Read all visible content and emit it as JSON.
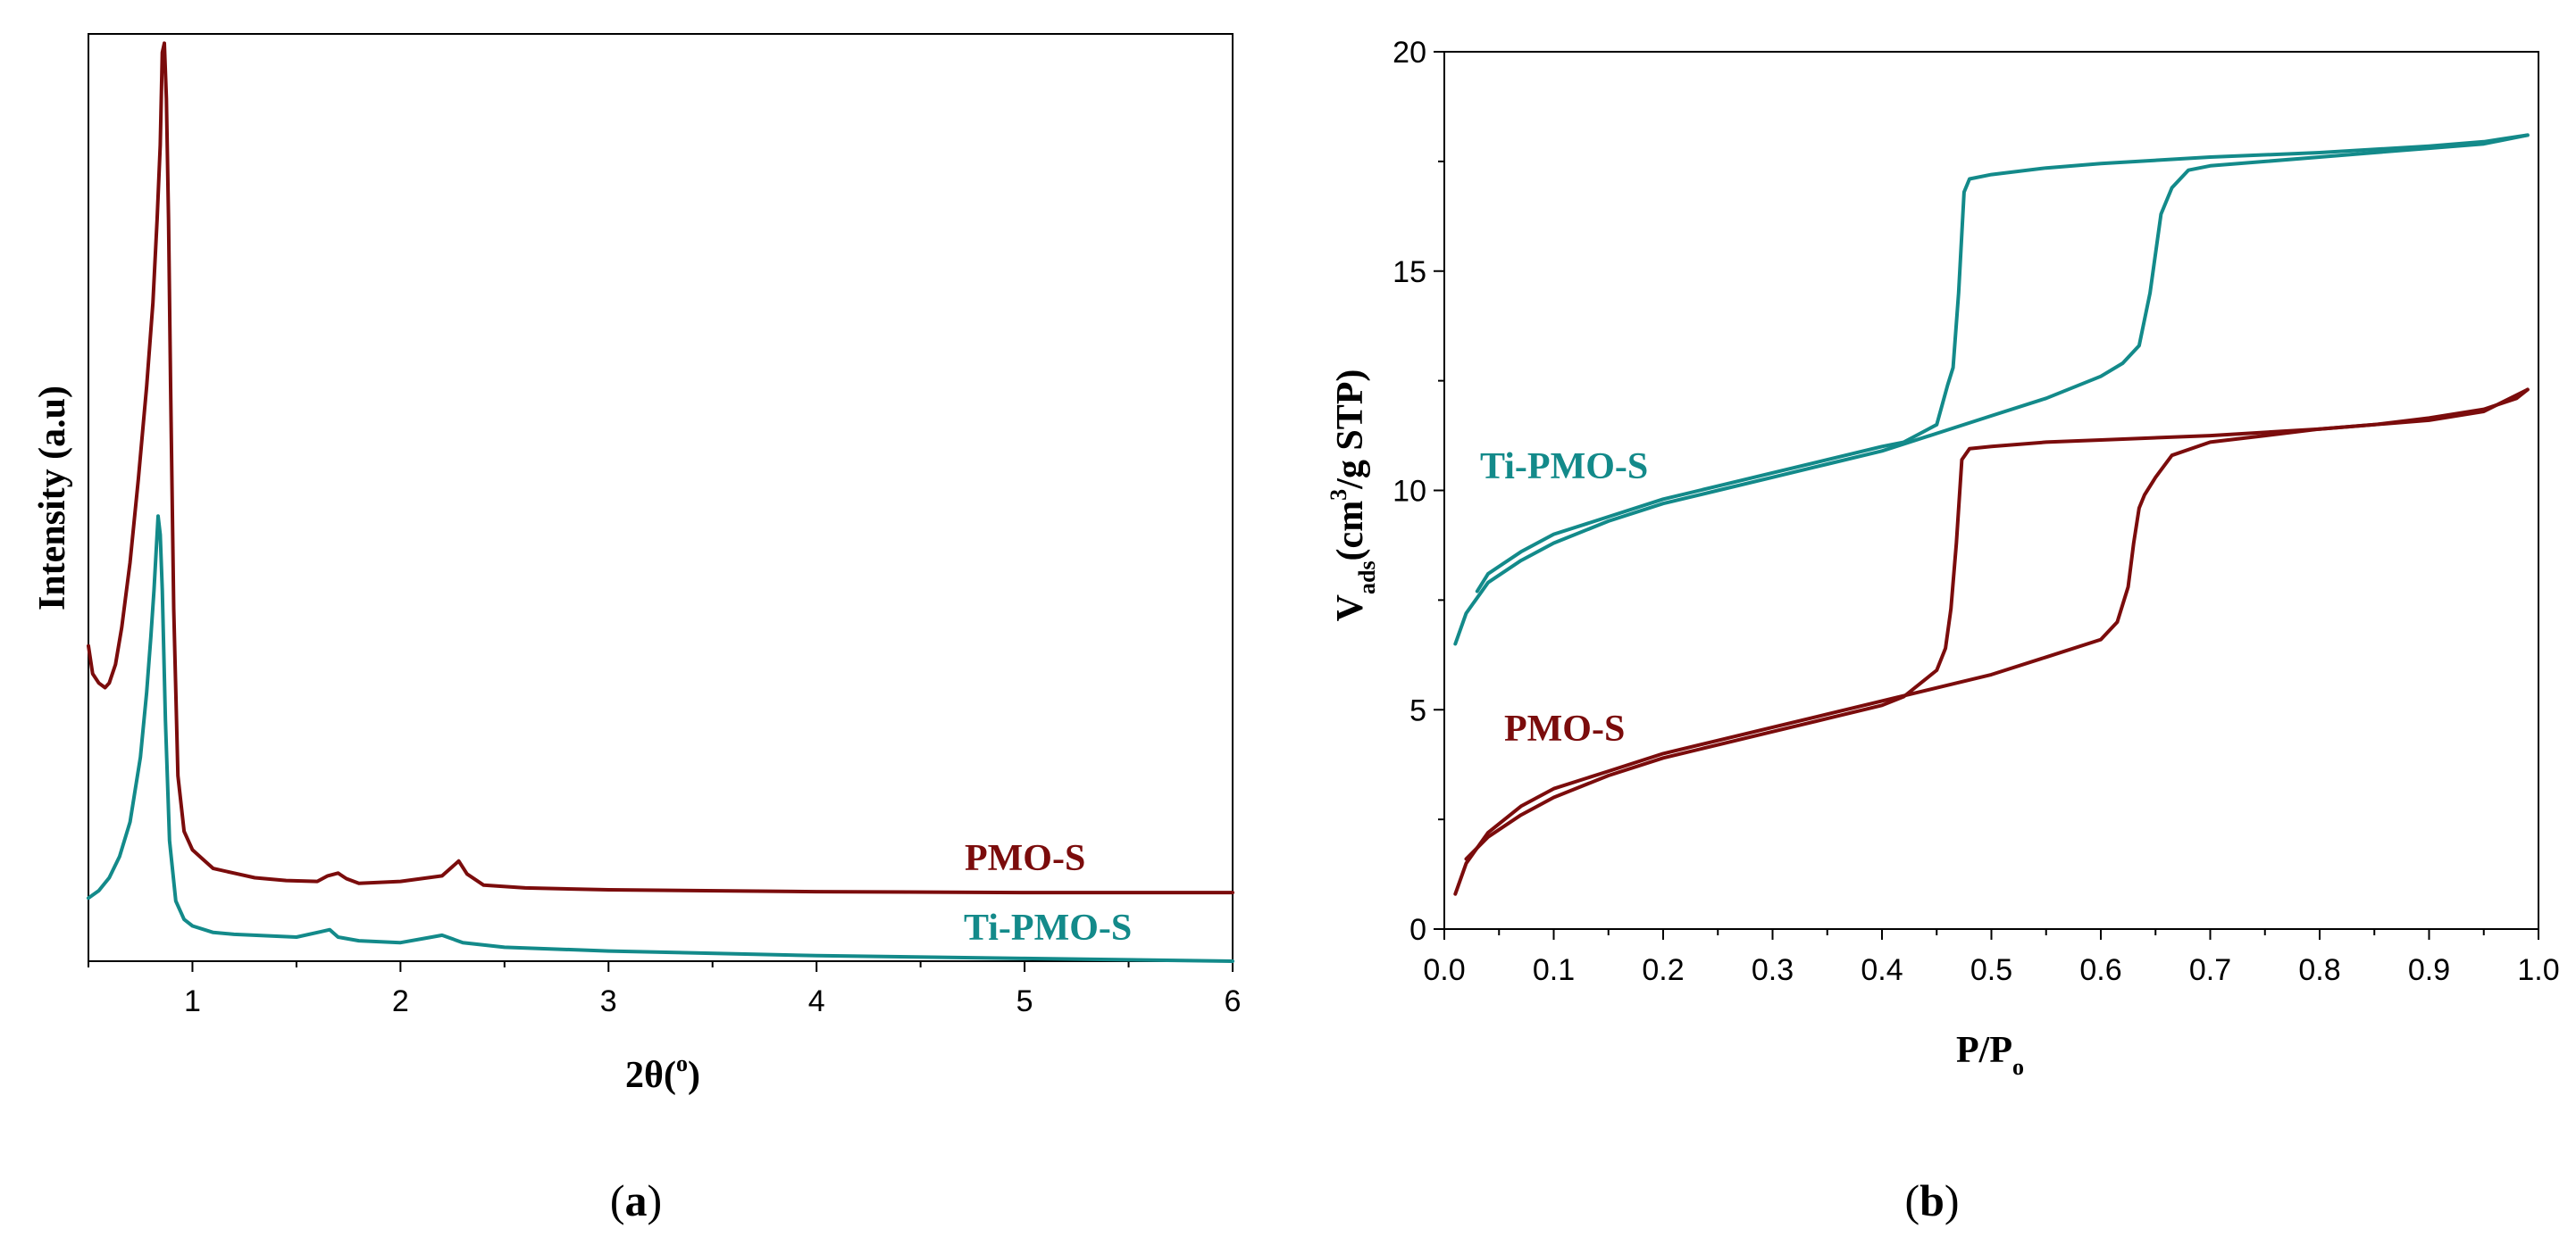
{
  "colors": {
    "pmo": "#7b0c0c",
    "ti": "#138a8a",
    "axis": "#000000"
  },
  "chart_data": [
    {
      "type": "line",
      "panel": "a",
      "panel_label": "a",
      "title": "",
      "xlabel": "2θ(",
      "xlabel_sup": "o",
      "xlabel_end": ")",
      "ylabel": "Intensity (a.u)",
      "xlim": [
        0.5,
        6
      ],
      "ylim": [
        0,
        100
      ],
      "xticks": [
        1,
        2,
        3,
        4,
        5,
        6
      ],
      "xtick_labels": [
        "1",
        "2",
        "3",
        "4",
        "5",
        "6"
      ],
      "series": [
        {
          "name": "PMO-S",
          "label": "PMO-S",
          "x": [
            0.5,
            0.52,
            0.55,
            0.58,
            0.6,
            0.63,
            0.66,
            0.7,
            0.74,
            0.78,
            0.81,
            0.83,
            0.845,
            0.855,
            0.865,
            0.875,
            0.885,
            0.895,
            0.91,
            0.93,
            0.96,
            1.0,
            1.05,
            1.1,
            1.2,
            1.3,
            1.45,
            1.6,
            1.65,
            1.7,
            1.74,
            1.8,
            2.0,
            2.2,
            2.25,
            2.28,
            2.32,
            2.4,
            2.6,
            3.0,
            4.0,
            5.0,
            6.0
          ],
          "y": [
            34,
            31,
            30,
            29.5,
            30,
            32,
            36,
            43,
            52,
            62,
            71,
            80,
            88,
            98,
            99,
            93,
            80,
            62,
            38,
            20,
            14,
            12,
            11,
            10,
            9.5,
            9,
            8.7,
            8.6,
            9.2,
            9.5,
            8.9,
            8.4,
            8.6,
            9.2,
            10.2,
            10.8,
            9.4,
            8.2,
            7.9,
            7.7,
            7.5,
            7.4,
            7.4
          ]
        },
        {
          "name": "Ti-PMO-S",
          "label": "Ti-PMO-S",
          "x": [
            0.5,
            0.55,
            0.6,
            0.65,
            0.7,
            0.75,
            0.78,
            0.8,
            0.815,
            0.825,
            0.835,
            0.845,
            0.855,
            0.87,
            0.89,
            0.92,
            0.96,
            1.0,
            1.1,
            1.2,
            1.5,
            1.62,
            1.66,
            1.7,
            1.8,
            2.0,
            2.15,
            2.2,
            2.3,
            2.5,
            3.0,
            4.0,
            5.0,
            6.0
          ],
          "y": [
            6.8,
            7.6,
            9,
            11.3,
            15,
            22,
            29,
            35,
            40,
            44,
            48,
            46,
            40,
            26,
            13,
            6.5,
            4.5,
            3.8,
            3.1,
            2.9,
            2.6,
            3.2,
            3.4,
            2.6,
            2.2,
            2,
            2.6,
            2.8,
            2,
            1.5,
            1.1,
            0.6,
            0.3,
            0
          ]
        }
      ]
    },
    {
      "type": "line",
      "panel": "b",
      "panel_label": "b",
      "title": "",
      "xlabel": "P/P",
      "xlabel_sub": "o",
      "ylabel_main": "V",
      "ylabel_sub": "ads",
      "ylabel_mid": "(cm",
      "ylabel_sup": "3",
      "ylabel_end": "/g STP)",
      "xlim": [
        0,
        1
      ],
      "ylim": [
        0,
        20
      ],
      "xticks": [
        0.0,
        0.1,
        0.2,
        0.3,
        0.4,
        0.5,
        0.6,
        0.7,
        0.8,
        0.9,
        1.0
      ],
      "xtick_labels": [
        "0.0",
        "0.1",
        "0.2",
        "0.3",
        "0.4",
        "0.5",
        "0.6",
        "0.7",
        "0.8",
        "0.9",
        "1.0"
      ],
      "yticks": [
        0,
        5,
        10,
        15,
        20
      ],
      "ytick_labels": [
        "0",
        "5",
        "10",
        "15",
        "20"
      ],
      "series": [
        {
          "name": "Ti-PMO-S",
          "label": "Ti-PMO-S",
          "branch": "adsorption",
          "x": [
            0.01,
            0.02,
            0.04,
            0.07,
            0.1,
            0.15,
            0.2,
            0.25,
            0.3,
            0.35,
            0.4,
            0.45,
            0.5,
            0.55,
            0.6,
            0.62,
            0.635,
            0.645,
            0.655,
            0.665,
            0.68,
            0.7,
            0.75,
            0.8,
            0.85,
            0.9,
            0.95,
            0.99
          ],
          "y": [
            6.5,
            7.2,
            7.9,
            8.4,
            8.8,
            9.3,
            9.7,
            10.0,
            10.3,
            10.6,
            10.9,
            11.3,
            11.7,
            12.1,
            12.6,
            12.9,
            13.3,
            14.5,
            16.3,
            16.9,
            17.3,
            17.4,
            17.5,
            17.6,
            17.7,
            17.8,
            17.9,
            18.1
          ]
        },
        {
          "name": "Ti-PMO-S",
          "label": "",
          "branch": "desorption",
          "x": [
            0.99,
            0.95,
            0.9,
            0.8,
            0.7,
            0.6,
            0.55,
            0.5,
            0.48,
            0.475,
            0.47,
            0.465,
            0.46,
            0.45,
            0.42,
            0.4,
            0.35,
            0.3,
            0.25,
            0.2,
            0.15,
            0.1,
            0.07,
            0.04,
            0.03
          ],
          "y": [
            18.1,
            17.95,
            17.85,
            17.7,
            17.6,
            17.45,
            17.35,
            17.2,
            17.1,
            16.8,
            14.5,
            12.8,
            12.4,
            11.5,
            11.1,
            11.0,
            10.7,
            10.4,
            10.1,
            9.8,
            9.4,
            9.0,
            8.6,
            8.1,
            7.7
          ]
        },
        {
          "name": "PMO-S",
          "label": "PMO-S",
          "branch": "adsorption",
          "x": [
            0.01,
            0.02,
            0.04,
            0.07,
            0.1,
            0.15,
            0.2,
            0.25,
            0.3,
            0.35,
            0.4,
            0.45,
            0.5,
            0.55,
            0.6,
            0.615,
            0.625,
            0.63,
            0.635,
            0.64,
            0.65,
            0.665,
            0.7,
            0.75,
            0.8,
            0.85,
            0.9,
            0.95,
            0.98,
            0.99
          ],
          "y": [
            0.8,
            1.5,
            2.2,
            2.8,
            3.2,
            3.6,
            4.0,
            4.3,
            4.6,
            4.9,
            5.2,
            5.5,
            5.8,
            6.2,
            6.6,
            7.0,
            7.8,
            8.8,
            9.6,
            9.9,
            10.3,
            10.8,
            11.1,
            11.25,
            11.4,
            11.5,
            11.65,
            11.85,
            12.1,
            12.3
          ]
        },
        {
          "name": "PMO-S",
          "label": "",
          "branch": "desorption",
          "x": [
            0.99,
            0.95,
            0.9,
            0.8,
            0.7,
            0.6,
            0.55,
            0.5,
            0.48,
            0.473,
            0.468,
            0.463,
            0.458,
            0.45,
            0.42,
            0.4,
            0.35,
            0.3,
            0.25,
            0.2,
            0.15,
            0.1,
            0.07,
            0.04,
            0.02
          ],
          "y": [
            12.3,
            11.8,
            11.6,
            11.4,
            11.25,
            11.15,
            11.1,
            11.0,
            10.95,
            10.7,
            8.8,
            7.3,
            6.4,
            5.9,
            5.3,
            5.1,
            4.8,
            4.5,
            4.2,
            3.9,
            3.5,
            3.0,
            2.6,
            2.1,
            1.6
          ]
        }
      ]
    }
  ]
}
